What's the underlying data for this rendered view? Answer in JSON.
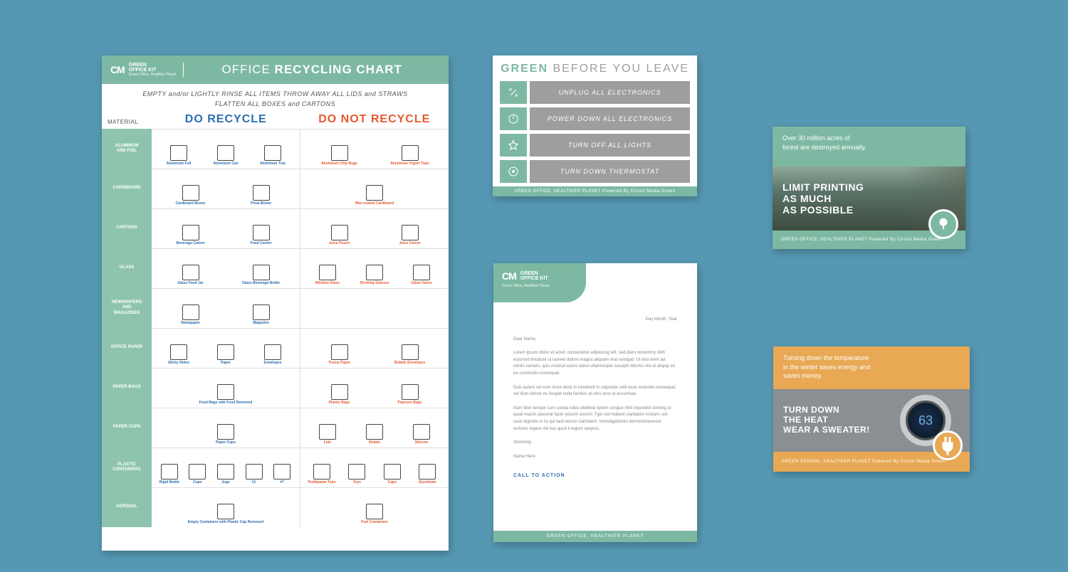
{
  "brand": {
    "mark": "CM",
    "name": "GREEN\nOFFICE KIT",
    "tag": "Green Office, Healthier Planet"
  },
  "chart": {
    "title_pre": "OFFICE ",
    "title_b": "RECYCLING CHART",
    "sub": "EMPTY and/or LIGHTLY RINSE ALL ITEMS THROW AWAY ALL LIDS and STRAWS\nFLATTEN ALL BOXES and CARTONS",
    "hdr_mat": "MATERIAL",
    "hdr_do": "DO RECYCLE",
    "hdr_dont": "DO NOT RECYCLE",
    "rows": [
      {
        "label": "ALUMINUM\nAND FOIL",
        "do": [
          "Aluminum Foil",
          "Aluminum Can",
          "Aluminum Tray"
        ],
        "dont": [
          "Aluminum Chip Bags",
          "Aluminum Yogurt Tops"
        ]
      },
      {
        "label": "CARDBOARD",
        "do": [
          "Cardboard Boxes",
          "Pizza Boxes"
        ],
        "dont": [
          "Wax-coated Cardboard"
        ]
      },
      {
        "label": "CARTONS",
        "do": [
          "Beverage Carton",
          "Food Carton"
        ],
        "dont": [
          "Juice Pouch",
          "Juice Carton"
        ]
      },
      {
        "label": "GLASS",
        "do": [
          "Glass Food Jar",
          "Glass Beverage Bottle"
        ],
        "dont": [
          "Window Glass",
          "Drinking Glasses",
          "Glass Vases"
        ]
      },
      {
        "label": "NEWSPAPERS\nAND\nMAGAZINES",
        "do": [
          "Newspaper",
          "Magazine"
        ],
        "dont": []
      },
      {
        "label": "OFFICE PAPER",
        "do": [
          "Sticky Notes",
          "Paper",
          "Envelopes"
        ],
        "dont": [
          "Tissue Paper",
          "Bubble Envelopes"
        ]
      },
      {
        "label": "PAPER BAGS",
        "do": [
          "Food Bags with Food Removed"
        ],
        "dont": [
          "Plastic Bags",
          "Popcorn Bags"
        ]
      },
      {
        "label": "PAPER CUPS",
        "do": [
          "Paper Cups"
        ],
        "dont": [
          "Lids",
          "Straws",
          "Sleeves"
        ]
      },
      {
        "label": "PLASTIC\nCONTAINERS",
        "do": [
          "Rigid Bottle",
          "Cups",
          "Jugs",
          "#1",
          "#7"
        ],
        "dont": [
          "Toothpaste Tube",
          "Toys",
          "Caps",
          "Styrofoam"
        ]
      },
      {
        "label": "AEROSOL",
        "do": [
          "Empty Containers with Plastic Cap Removed"
        ],
        "dont": [
          "Fuel Containers"
        ]
      }
    ]
  },
  "leave": {
    "title_g": "GREEN",
    "title_r": " BEFORE YOU LEAVE",
    "items": [
      "UNPLUG ALL ELECTRONICS",
      "POWER DOWN ALL ELECTRONICS",
      "TURN OFF ALL LIGHTS",
      "TURN DOWN THERMOSTAT"
    ],
    "footer": "GREEN OFFICE, HEALTHIER PLANET Powered By Circuit Media Green"
  },
  "letter": {
    "date": "Day Month, Year",
    "greeting": "Dear Name,",
    "p1": "Lorem ipsum dolor sit amet, consectetur adipiscing elit, sed diam nonummy nibh euismod tincidunt ut laoreet dolore magna aliquam erat volutpat. Ut wisi enim ad minim veniam, quis nostrud exerci tation ullamcorper suscipit lobortis nisl ut aliquip ex ea commodo consequat.",
    "p2": "Duis autem vel eum iriure dolor in hendrerit in vulputate velit esse molestie consequat, vel illum dolore eu feugiat nulla facilisis at vero eros et accumsan.",
    "p3": "Nam liber tempor cum soluta nobis eleifend option congue nihil imperdiet doming id quod mazim placerat facer possim assum. Typi non habent claritatem insitam; est usus legentis in iis qui facit eorum claritatem. Investigationes demonstraverunt lectores legere me lius quod ii legunt saepius.",
    "signoff": "Sincerely,",
    "name": "Name Here",
    "cta": "CALL TO ACTION",
    "footer": "GREEN OFFICE, HEALTHIER PLANET"
  },
  "info1": {
    "top": "Over 30 million acres of\nforest are destroyed annually.",
    "big": "LIMIT PRINTING\nAS MUCH\nAS POSSIBLE",
    "footer": "GREEN OFFICE, HEALTHIER PLANET Powered By Circuit Media Green"
  },
  "info2": {
    "top": "Turning down the temperature\nin the winter saves energy and\nsaves money.",
    "big": "TURN DOWN\nTHE HEAT\nWEAR A SWEATER!",
    "temp": "63",
    "footer": "GREEN SCHOOL, HEALTHIER PLANET Powered By Circuit Media Green"
  },
  "colors": {
    "green": "#7db9a2",
    "blue": "#2b6db0",
    "orange": "#e8582f",
    "amber": "#e8a854",
    "gray": "#9e9e9e",
    "bg": "#5698b3"
  }
}
